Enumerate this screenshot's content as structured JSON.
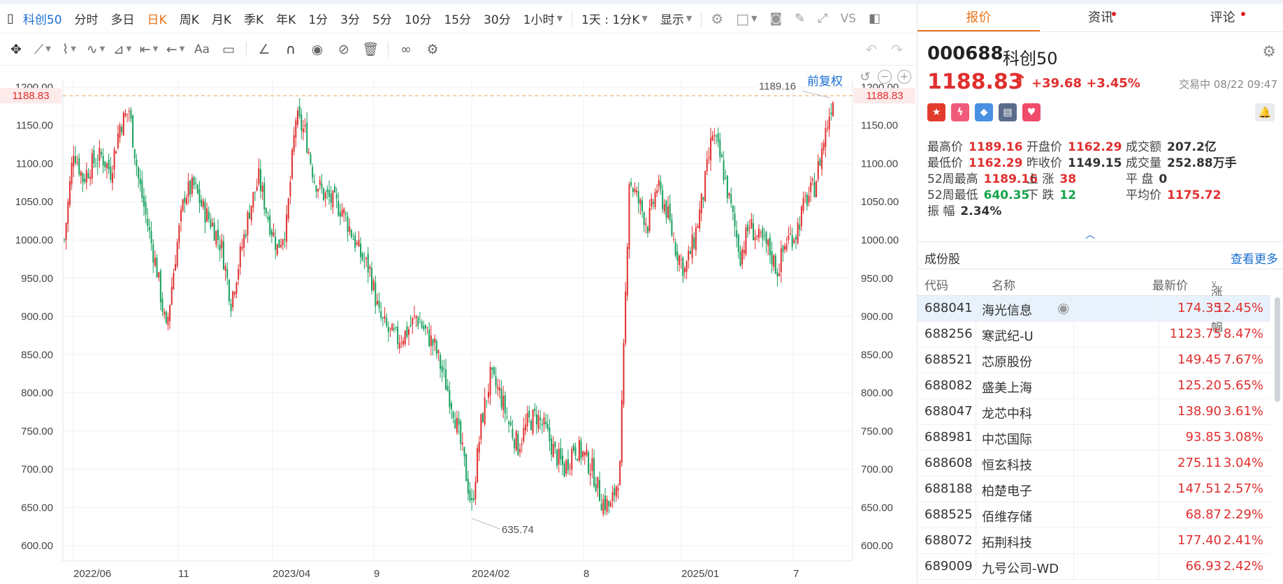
{
  "toolbar": {
    "items": [
      "科创50",
      "分时",
      "多日",
      "日K",
      "周K",
      "月K",
      "季K",
      "年K",
      "1分",
      "3分",
      "5分",
      "10分",
      "15分",
      "30分",
      "1小时",
      "1天 : 1分K",
      "显示",
      "VS"
    ],
    "active_index": 3
  },
  "chart": {
    "fq_label": "前复权",
    "price_line_label": "1188.83",
    "high_annot": "1189.16",
    "low_annot": "635.74",
    "y_ticks": [
      "1200.00",
      "1150.00",
      "1100.00",
      "1050.00",
      "1000.00",
      "950.00",
      "900.00",
      "850.00",
      "800.00",
      "750.00",
      "700.00",
      "650.00",
      "600.00"
    ],
    "x_ticks": [
      "2022/06",
      "11",
      "2023/04",
      "9",
      "2024/02",
      "8",
      "2025/01",
      "7"
    ],
    "colors": {
      "up": "#e02e2e",
      "down": "#17a05d",
      "line": "#f0a050"
    }
  },
  "chart_data": {
    "type": "candlestick",
    "title": "",
    "ylim": [
      580,
      1210
    ],
    "series": [
      {
        "name": "",
        "points": [
          [
            0,
            1000
          ],
          [
            10,
            1120
          ],
          [
            20,
            1080
          ],
          [
            30,
            1100
          ],
          [
            40,
            1110
          ],
          [
            50,
            1090
          ],
          [
            60,
            1150
          ],
          [
            70,
            1170
          ],
          [
            80,
            1080
          ],
          [
            90,
            1020
          ],
          [
            100,
            960
          ],
          [
            110,
            880
          ],
          [
            120,
            980
          ],
          [
            130,
            1060
          ],
          [
            140,
            1070
          ],
          [
            150,
            1040
          ],
          [
            160,
            1020
          ],
          [
            170,
            990
          ],
          [
            180,
            920
          ],
          [
            190,
            980
          ],
          [
            200,
            1040
          ],
          [
            210,
            1080
          ],
          [
            220,
            1030
          ],
          [
            230,
            990
          ],
          [
            240,
            1020
          ],
          [
            250,
            1160
          ],
          [
            260,
            1140
          ],
          [
            270,
            1080
          ],
          [
            280,
            1060
          ],
          [
            290,
            1050
          ],
          [
            300,
            1040
          ],
          [
            310,
            1010
          ],
          [
            320,
            980
          ],
          [
            330,
            960
          ],
          [
            340,
            900
          ],
          [
            350,
            880
          ],
          [
            360,
            870
          ],
          [
            370,
            880
          ],
          [
            380,
            900
          ],
          [
            390,
            880
          ],
          [
            400,
            860
          ],
          [
            410,
            820
          ],
          [
            420,
            780
          ],
          [
            430,
            720
          ],
          [
            440,
            650
          ],
          [
            450,
            760
          ],
          [
            460,
            820
          ],
          [
            470,
            800
          ],
          [
            480,
            760
          ],
          [
            490,
            730
          ],
          [
            500,
            760
          ],
          [
            510,
            770
          ],
          [
            520,
            750
          ],
          [
            530,
            720
          ],
          [
            540,
            700
          ],
          [
            550,
            730
          ],
          [
            560,
            720
          ],
          [
            570,
            700
          ],
          [
            580,
            660
          ],
          [
            590,
            650
          ],
          [
            600,
            700
          ],
          [
            610,
            1080
          ],
          [
            620,
            1050
          ],
          [
            630,
            1020
          ],
          [
            640,
            1070
          ],
          [
            650,
            1040
          ],
          [
            660,
            990
          ],
          [
            670,
            960
          ],
          [
            680,
            1000
          ],
          [
            690,
            1060
          ],
          [
            700,
            1140
          ],
          [
            710,
            1100
          ],
          [
            720,
            1040
          ],
          [
            730,
            980
          ],
          [
            740,
            1020
          ],
          [
            750,
            1000
          ],
          [
            760,
            990
          ],
          [
            770,
            960
          ],
          [
            780,
            1000
          ],
          [
            790,
            1010
          ],
          [
            800,
            1050
          ],
          [
            810,
            1070
          ],
          [
            820,
            1130
          ],
          [
            830,
            1188
          ]
        ]
      }
    ]
  },
  "quote": {
    "tabs": [
      "报价",
      "资讯",
      "评论"
    ],
    "code": "000688",
    "name": "科创50",
    "price": "1188.83",
    "change": "+39.68",
    "change_pct": "+3.45%",
    "status": "交易中 08/22 09:47",
    "stats": [
      {
        "label": "最高价",
        "value": "1189.16",
        "c": "up"
      },
      {
        "label": "开盘价",
        "value": "1162.29",
        "c": "up"
      },
      {
        "label": "成交额",
        "value": "207.2亿",
        "c": "nm"
      },
      {
        "label": "最低价",
        "value": "1162.29",
        "c": "up"
      },
      {
        "label": "昨收价",
        "value": "1149.15",
        "c": "nm"
      },
      {
        "label": "成交量",
        "value": "252.88万手",
        "c": "nm"
      },
      {
        "label": "52周最高",
        "value": "1189.16",
        "c": "up"
      },
      {
        "label": "上 涨",
        "value": "38",
        "c": "up"
      },
      {
        "label": "平 盘",
        "value": "0",
        "c": "nm"
      },
      {
        "label": "52周最低",
        "value": "640.35",
        "c": "dn"
      },
      {
        "label": "下 跌",
        "value": "12",
        "c": "dn"
      },
      {
        "label": "平均价",
        "value": "1175.72",
        "c": "up"
      },
      {
        "label": "振 幅",
        "value": "2.34%",
        "c": "nm"
      }
    ]
  },
  "components": {
    "title": "成份股",
    "more": "查看更多",
    "headers": [
      "代码",
      "名称",
      "最新价",
      "涨跌幅"
    ],
    "rows": [
      {
        "code": "688041",
        "name": "海光信息",
        "price": "174.35",
        "pct": "12.45%"
      },
      {
        "code": "688256",
        "name": "寒武纪-U",
        "price": "1123.75",
        "pct": "8.47%"
      },
      {
        "code": "688521",
        "name": "芯原股份",
        "price": "149.45",
        "pct": "7.67%"
      },
      {
        "code": "688082",
        "name": "盛美上海",
        "price": "125.20",
        "pct": "5.65%"
      },
      {
        "code": "688047",
        "name": "龙芯中科",
        "price": "138.90",
        "pct": "3.61%"
      },
      {
        "code": "688981",
        "name": "中芯国际",
        "price": "93.85",
        "pct": "3.08%"
      },
      {
        "code": "688608",
        "name": "恒玄科技",
        "price": "275.11",
        "pct": "3.04%"
      },
      {
        "code": "688188",
        "name": "柏楚电子",
        "price": "147.51",
        "pct": "2.57%"
      },
      {
        "code": "688525",
        "name": "佰维存储",
        "price": "68.87",
        "pct": "2.29%"
      },
      {
        "code": "688072",
        "name": "拓荆科技",
        "price": "177.40",
        "pct": "2.41%"
      },
      {
        "code": "689009",
        "name": "九号公司-WD",
        "price": "66.93",
        "pct": "2.42%"
      }
    ]
  }
}
